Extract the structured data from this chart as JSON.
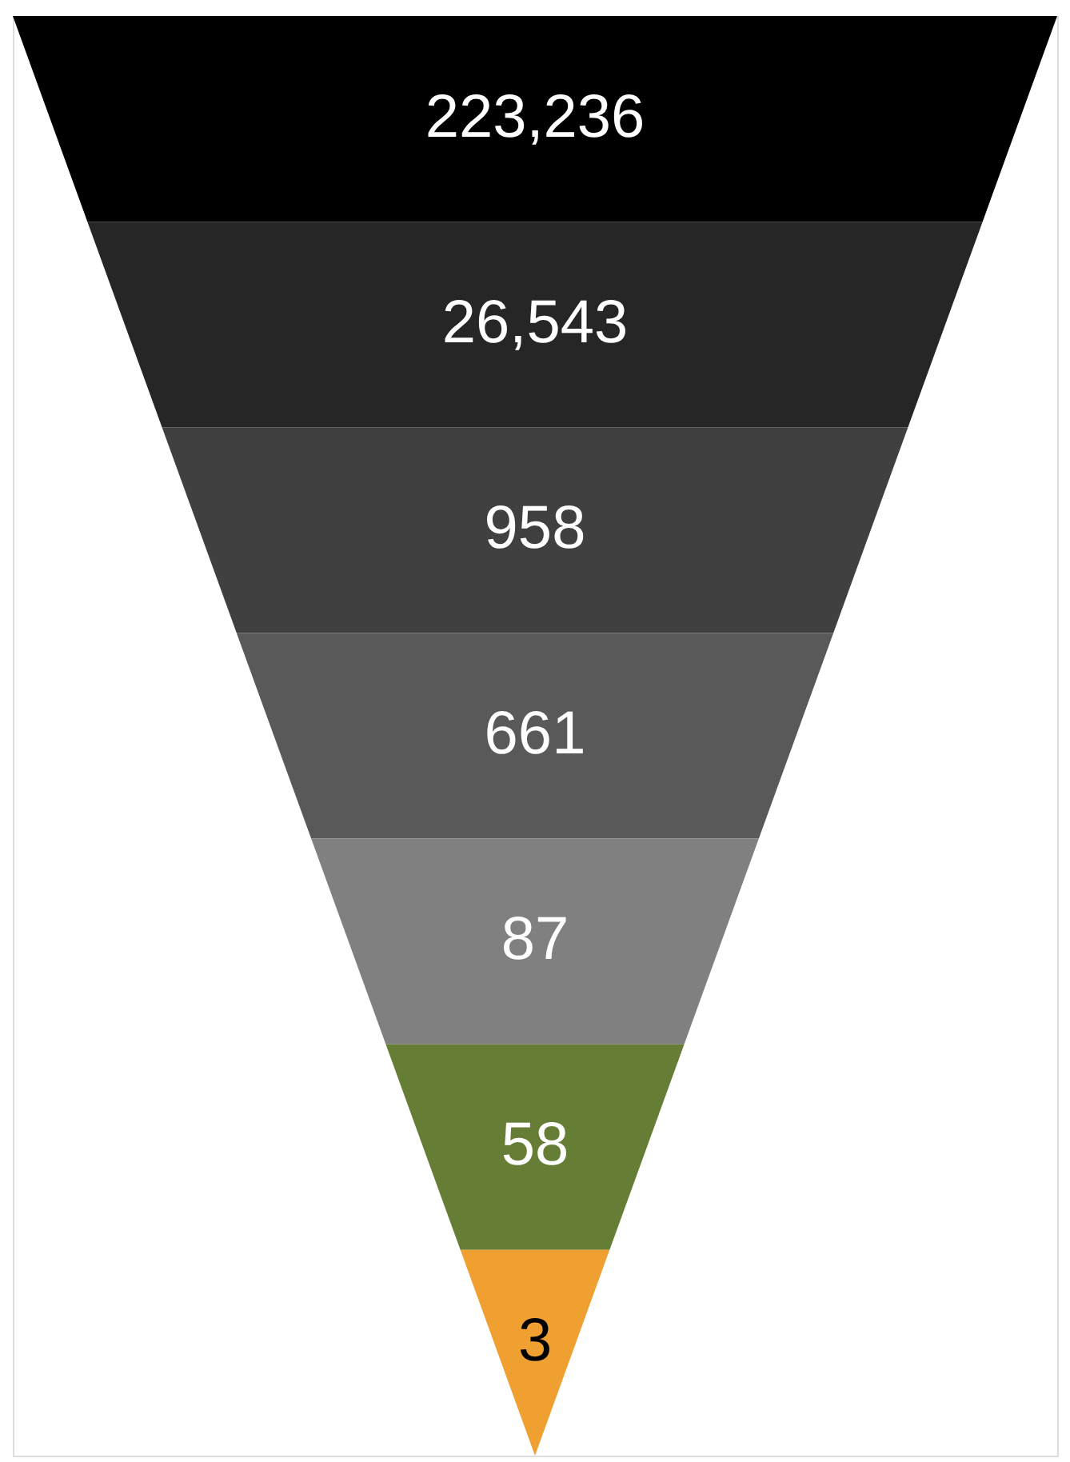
{
  "chart_data": {
    "type": "other",
    "categories": [
      null,
      null,
      null,
      null,
      null,
      null,
      null
    ],
    "values": [
      223236,
      26543,
      958,
      661,
      87,
      58,
      3
    ],
    "colors": [
      "#000000",
      "#262626",
      "#404040",
      "#595959",
      "#808080",
      "#667d35",
      "#f0a030"
    ],
    "data_labels": true,
    "value_labels": [
      "223,236",
      "26,543",
      "958",
      "661",
      "87",
      "58",
      "3"
    ]
  }
}
